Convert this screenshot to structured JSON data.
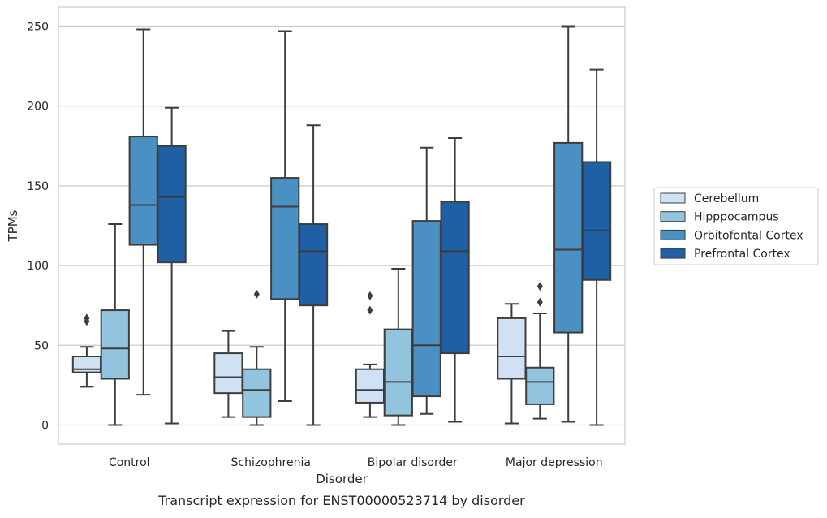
{
  "chart_data": {
    "type": "boxplot",
    "caption": "Transcript expression for ENST00000523714 by disorder",
    "xlabel": "Disorder",
    "ylabel": "TPMs",
    "ylim": [
      -12,
      262
    ],
    "yticks": [
      0,
      50,
      100,
      150,
      200,
      250
    ],
    "grid": true,
    "legend_position": "right",
    "categories": [
      "Control",
      "Schizophrenia",
      "Bipolar disorder",
      "Major depression"
    ],
    "series": [
      {
        "name": "Cerebellum",
        "color": "#cfe1f2",
        "boxes": [
          {
            "whislo": 24,
            "q1": 33,
            "med": 35,
            "q3": 43,
            "whishi": 49,
            "fliers": [
              65,
              67
            ]
          },
          {
            "whislo": 5,
            "q1": 20,
            "med": 30,
            "q3": 45,
            "whishi": 59,
            "fliers": []
          },
          {
            "whislo": 5,
            "q1": 14,
            "med": 22,
            "q3": 35,
            "whishi": 38,
            "fliers": [
              72,
              81
            ]
          },
          {
            "whislo": 1,
            "q1": 29,
            "med": 43,
            "q3": 67,
            "whishi": 76,
            "fliers": []
          }
        ]
      },
      {
        "name": "Hipppocampus",
        "color": "#93c4de",
        "boxes": [
          {
            "whislo": 0,
            "q1": 29,
            "med": 48,
            "q3": 72,
            "whishi": 126,
            "fliers": []
          },
          {
            "whislo": 0,
            "q1": 5,
            "med": 22,
            "q3": 35,
            "whishi": 49,
            "fliers": [
              82
            ]
          },
          {
            "whislo": 0,
            "q1": 6,
            "med": 27,
            "q3": 60,
            "whishi": 98,
            "fliers": []
          },
          {
            "whislo": 4,
            "q1": 13,
            "med": 27,
            "q3": 36,
            "whishi": 70,
            "fliers": [
              77,
              87
            ]
          }
        ]
      },
      {
        "name": "Orbitofontal Cortex",
        "color": "#4a90c2",
        "boxes": [
          {
            "whislo": 19,
            "q1": 113,
            "med": 138,
            "q3": 181,
            "whishi": 248,
            "fliers": []
          },
          {
            "whislo": 15,
            "q1": 79,
            "med": 137,
            "q3": 155,
            "whishi": 247,
            "fliers": []
          },
          {
            "whislo": 7,
            "q1": 18,
            "med": 50,
            "q3": 128,
            "whishi": 174,
            "fliers": []
          },
          {
            "whislo": 2,
            "q1": 58,
            "med": 110,
            "q3": 177,
            "whishi": 250,
            "fliers": []
          }
        ]
      },
      {
        "name": "Prefrontal Cortex",
        "color": "#1f5fa3",
        "boxes": [
          {
            "whislo": 1,
            "q1": 102,
            "med": 143,
            "q3": 175,
            "whishi": 199,
            "fliers": []
          },
          {
            "whislo": 0,
            "q1": 75,
            "med": 109,
            "q3": 126,
            "whishi": 188,
            "fliers": []
          },
          {
            "whislo": 2,
            "q1": 45,
            "med": 109,
            "q3": 140,
            "whishi": 180,
            "fliers": []
          },
          {
            "whislo": 0,
            "q1": 91,
            "med": 122,
            "q3": 165,
            "whishi": 223,
            "fliers": []
          }
        ]
      }
    ]
  }
}
